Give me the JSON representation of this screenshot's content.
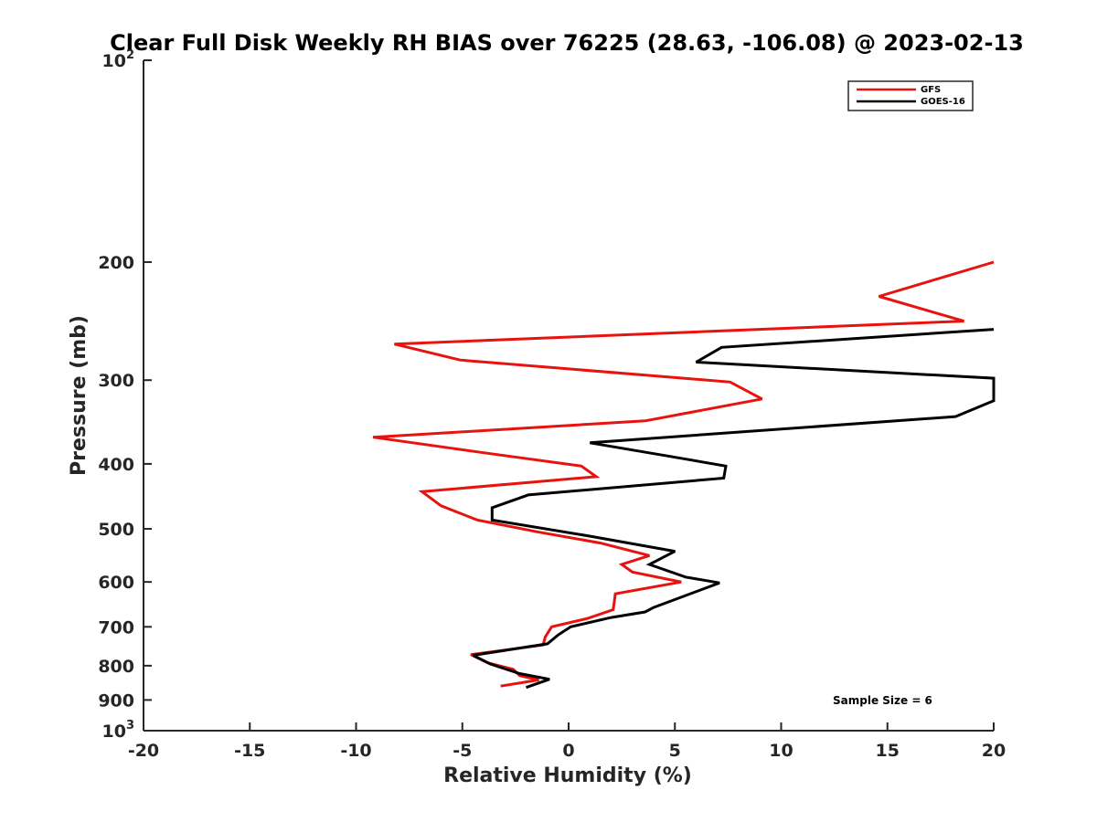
{
  "chart_data": {
    "type": "line",
    "title": "Clear Full Disk Weekly RH BIAS over 76225 (28.63, -106.08) @ 2023-02-13",
    "xlabel": "Relative Humidity (%)",
    "ylabel": "Pressure (mb)",
    "xlim": [
      -20,
      20
    ],
    "ylim": [
      100,
      1000
    ],
    "yscale": "log",
    "y_reversed": true,
    "x_ticks": [
      -20,
      -15,
      -10,
      -5,
      0,
      5,
      10,
      15,
      20
    ],
    "x_tick_labels": [
      "-20",
      "-15",
      "-10",
      "-5",
      "0",
      "5",
      "10",
      "15",
      "20"
    ],
    "y_ticks": [
      100,
      200,
      300,
      400,
      500,
      600,
      700,
      800,
      900,
      1000
    ],
    "y_tick_labels": [
      {
        "base": "10",
        "sup": "2"
      },
      {
        "base": "200",
        "sup": ""
      },
      {
        "base": "300",
        "sup": ""
      },
      {
        "base": "400",
        "sup": ""
      },
      {
        "base": "500",
        "sup": ""
      },
      {
        "base": "600",
        "sup": ""
      },
      {
        "base": "700",
        "sup": ""
      },
      {
        "base": "800",
        "sup": ""
      },
      {
        "base": "900",
        "sup": ""
      },
      {
        "base": "10",
        "sup": "3"
      }
    ],
    "grid": false,
    "legend_position": "top-right",
    "annotation": "Sample Size = 6",
    "series": [
      {
        "name": "GFS",
        "color": "#e8130f",
        "points": [
          [
            20.0,
            200
          ],
          [
            14.6,
            225
          ],
          [
            18.6,
            245
          ],
          [
            -8.2,
            265
          ],
          [
            -5.1,
            280
          ],
          [
            7.6,
            302
          ],
          [
            9.1,
            320
          ],
          [
            3.6,
            345
          ],
          [
            -9.2,
            365
          ],
          [
            -4.0,
            385
          ],
          [
            0.6,
            403
          ],
          [
            1.3,
            418
          ],
          [
            -6.9,
            440
          ],
          [
            -6.0,
            462
          ],
          [
            -4.3,
            485
          ],
          [
            -1.5,
            505
          ],
          [
            1.5,
            525
          ],
          [
            3.8,
            548
          ],
          [
            2.5,
            565
          ],
          [
            3.0,
            580
          ],
          [
            5.3,
            600
          ],
          [
            2.2,
            625
          ],
          [
            2.1,
            660
          ],
          [
            0.9,
            680
          ],
          [
            -0.8,
            700
          ],
          [
            -1.1,
            725
          ],
          [
            -1.2,
            745
          ],
          [
            -4.6,
            770
          ],
          [
            -3.8,
            792
          ],
          [
            -2.6,
            810
          ],
          [
            -2.3,
            828
          ],
          [
            -1.4,
            840
          ],
          [
            -3.2,
            858
          ]
        ]
      },
      {
        "name": "GOES-16",
        "color": "#000000",
        "points": [
          [
            20.0,
            252
          ],
          [
            7.2,
            268
          ],
          [
            6.0,
            282
          ],
          [
            20.0,
            298
          ],
          [
            20.0,
            322
          ],
          [
            18.2,
            340
          ],
          [
            1.0,
            372
          ],
          [
            4.8,
            390
          ],
          [
            7.4,
            403
          ],
          [
            7.3,
            420
          ],
          [
            -1.9,
            445
          ],
          [
            -3.6,
            465
          ],
          [
            -3.6,
            485
          ],
          [
            0.9,
            512
          ],
          [
            5.0,
            540
          ],
          [
            3.8,
            565
          ],
          [
            5.5,
            590
          ],
          [
            7.1,
            602
          ],
          [
            4.0,
            655
          ],
          [
            3.6,
            665
          ],
          [
            2.0,
            678
          ],
          [
            0.1,
            700
          ],
          [
            -0.5,
            720
          ],
          [
            -1.0,
            742
          ],
          [
            -4.5,
            772
          ],
          [
            -3.7,
            795
          ],
          [
            -2.3,
            822
          ],
          [
            -0.9,
            838
          ],
          [
            -2.0,
            862
          ]
        ]
      }
    ]
  }
}
